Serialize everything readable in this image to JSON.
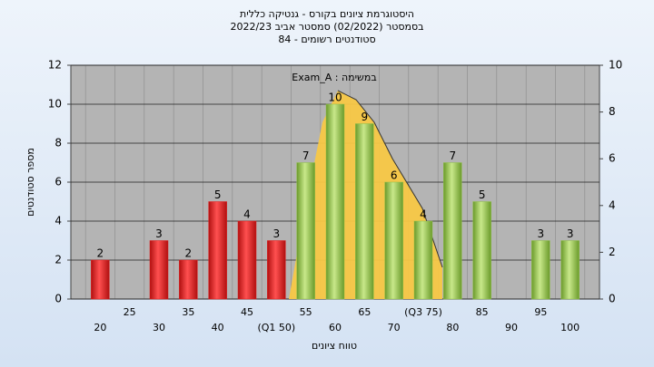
{
  "chart_data": {
    "type": "bar",
    "title": "היסטוגרמת ציונים בקורס - גנטיקה כללית",
    "subtitle": "בסמסטר  (02/2022)  סמסטר אביב 2022/23",
    "subtitle2": "סטודנטים רשומים - 84",
    "annotation": "Exam_A : במשימה",
    "x_label": "טווח ציונים",
    "y_label": "מספר סטודנטים",
    "categories": [
      "20",
      "25",
      "30",
      "35",
      "40",
      "45",
      "(Q1 50)",
      "55",
      "60",
      "65",
      "70",
      "(Q3 75)",
      "80",
      "85",
      "90",
      "95",
      "100"
    ],
    "values": [
      2,
      0,
      3,
      2,
      5,
      4,
      3,
      7,
      10,
      9,
      6,
      4,
      7,
      5,
      0,
      3,
      3
    ],
    "colors": [
      "#e02020",
      "#e02020",
      "#e02020",
      "#e02020",
      "#e02020",
      "#e02020",
      "#e02020",
      "#8fc04a",
      "#8fc04a",
      "#8fc04a",
      "#8fc04a",
      "#8fc04a",
      "#8fc04a",
      "#8fc04a",
      "#8fc04a",
      "#8fc04a",
      "#8fc04a"
    ],
    "ylim": [
      0,
      12
    ],
    "yticks": [
      0,
      2,
      4,
      6,
      8,
      10,
      12
    ],
    "y2lim": [
      0,
      10
    ],
    "y2ticks": [
      0,
      2,
      4,
      6,
      8,
      10
    ],
    "grid": true
  }
}
